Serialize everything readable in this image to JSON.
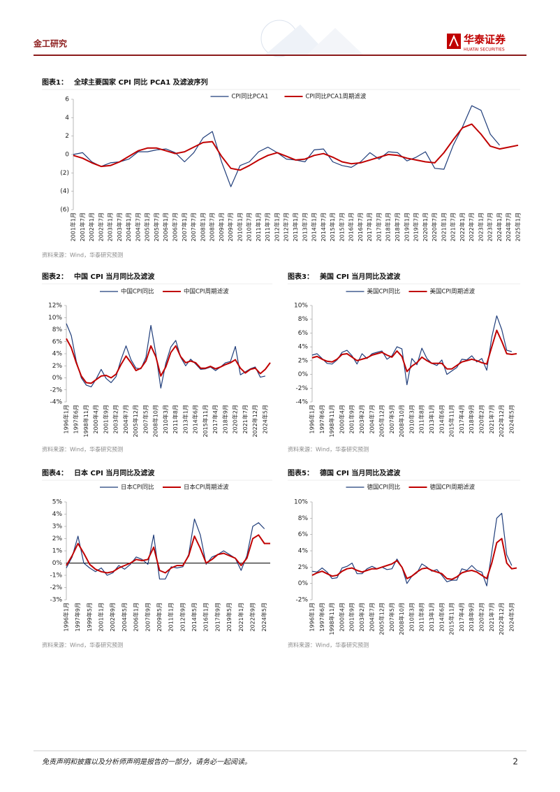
{
  "header": {
    "section": "金工研究",
    "logo_cn": "华泰证券",
    "logo_en": "HUATAI SECURITIES"
  },
  "footer": {
    "disclaimer": "免责声明和披露以及分析师声明是报告的一部分，请务必一起阅读。",
    "page": "2"
  },
  "chart_data": [
    {
      "type": "line",
      "label": "图表1：",
      "title": "全球主要国家 CPI 同比 PCA1 及滤波序列",
      "source": "资料来源：Wind，华泰研究预测",
      "legend": "top",
      "categories": [
        "2001年1月",
        "2001年7月",
        "2002年1月",
        "2002年7月",
        "2003年1月",
        "2003年7月",
        "2004年1月",
        "2004年7月",
        "2005年1月",
        "2005年7月",
        "2006年1月",
        "2006年7月",
        "2007年1月",
        "2007年7月",
        "2008年1月",
        "2008年7月",
        "2009年1月",
        "2009年7月",
        "2010年1月",
        "2010年7月",
        "2011年1月",
        "2011年7月",
        "2012年1月",
        "2012年7月",
        "2013年1月",
        "2013年7月",
        "2014年1月",
        "2014年7月",
        "2015年1月",
        "2015年7月",
        "2016年1月",
        "2016年7月",
        "2017年1月",
        "2017年7月",
        "2018年1月",
        "2018年7月",
        "2019年1月",
        "2019年7月",
        "2020年1月",
        "2020年7月",
        "2021年1月",
        "2021年7月",
        "2022年1月",
        "2022年7月",
        "2023年1月",
        "2023年7月",
        "2024年1月",
        "2024年7月",
        "2025年1月"
      ],
      "series": [
        {
          "name": "CPI同比PCA1",
          "color": "#1f3d7a",
          "width": 1.2,
          "values": [
            0,
            0.2,
            -0.8,
            -1.3,
            -0.9,
            -0.8,
            -0.5,
            0.3,
            0.3,
            0.5,
            0.6,
            0.2,
            -0.8,
            0.2,
            1.8,
            2.5,
            -0.8,
            -3.5,
            -1.2,
            -0.8,
            0.3,
            0.8,
            0.2,
            -0.5,
            -0.6,
            -0.8,
            0.5,
            0.6,
            -0.8,
            -1.2,
            -1.4,
            -0.8,
            0.2,
            -0.5,
            0.3,
            0.2,
            -0.7,
            -0.3,
            0.3,
            -1.5,
            -1.6,
            1.0,
            3.0,
            5.3,
            4.8,
            2.2,
            1.0,
            null,
            null
          ]
        },
        {
          "name": "CPI同比PCA1周期滤波",
          "color": "#c00000",
          "width": 2,
          "values": [
            -0.1,
            -0.4,
            -0.9,
            -1.3,
            -1.2,
            -0.8,
            -0.2,
            0.4,
            0.7,
            0.7,
            0.4,
            0.1,
            0.3,
            0.8,
            1.3,
            1.4,
            -0.2,
            -1.5,
            -1.7,
            -1.2,
            -0.6,
            -0.1,
            0.2,
            -0.2,
            -0.6,
            -0.5,
            -0.1,
            0.1,
            -0.3,
            -0.8,
            -1.0,
            -0.9,
            -0.6,
            -0.3,
            0.0,
            -0.1,
            -0.4,
            -0.6,
            -0.8,
            -0.9,
            0.2,
            1.6,
            2.9,
            3.3,
            2.2,
            0.9,
            0.6,
            0.8,
            1.0
          ]
        }
      ],
      "ylim": [
        -6,
        6
      ],
      "yticks": [
        {
          "value": -6,
          "label": "(6)"
        },
        {
          "value": -4,
          "label": "(4)"
        },
        {
          "value": -2,
          "label": "(2)"
        },
        0,
        2,
        4,
        6
      ]
    },
    {
      "type": "line",
      "label": "图表2：",
      "title": "中国 CPI 当月同比及滤波",
      "source": "资料来源：Wind，华泰研究预测",
      "legend": "top",
      "categories": [
        "1996年1月",
        null,
        "1997年6月",
        null,
        "1998年11月",
        null,
        "2000年4月",
        null,
        "2001年9月",
        null,
        "2003年2月",
        null,
        "2004年7月",
        null,
        "2005年12月",
        null,
        "2007年5月",
        null,
        "2008年10月",
        null,
        "2010年3月",
        null,
        "2011年8月",
        null,
        "2013年1月",
        null,
        "2014年6月",
        null,
        "2015年11月",
        null,
        "2017年4月",
        null,
        "2018年9月",
        null,
        "2020年2月",
        null,
        "2021年7月",
        null,
        "2022年12月",
        null,
        "2024年5月",
        null
      ],
      "series": [
        {
          "name": "中国CPI同比",
          "color": "#1f3d7a",
          "width": 1.2,
          "values": [
            9.0,
            7.0,
            2.8,
            0.0,
            -1.2,
            -1.5,
            -0.2,
            1.4,
            -0.1,
            -0.8,
            0.2,
            3.0,
            5.3,
            3.0,
            1.6,
            1.5,
            3.4,
            8.7,
            4.0,
            -1.7,
            2.4,
            5.1,
            6.2,
            3.4,
            2.0,
            3.1,
            2.3,
            1.4,
            1.5,
            1.8,
            1.2,
            1.8,
            2.5,
            2.7,
            5.2,
            0.5,
            1.0,
            1.5,
            1.8,
            0.1,
            0.3,
            null
          ]
        },
        {
          "name": "中国CPI周期滤波",
          "color": "#c00000",
          "width": 2,
          "values": [
            6.5,
            5.0,
            2.5,
            0.3,
            -0.8,
            -0.9,
            -0.3,
            0.3,
            0.4,
            0.0,
            0.6,
            2.2,
            3.6,
            2.5,
            1.2,
            1.6,
            2.8,
            5.3,
            3.5,
            0.3,
            1.8,
            4.2,
            5.3,
            3.5,
            2.5,
            2.8,
            2.5,
            1.6,
            1.6,
            1.9,
            1.5,
            1.8,
            2.2,
            2.5,
            3.0,
            1.6,
            0.8,
            1.4,
            1.6,
            0.7,
            1.4,
            2.5
          ]
        }
      ],
      "ylim": [
        -4,
        12
      ],
      "yticks": [
        {
          "value": -4,
          "label": "-4%"
        },
        {
          "value": -2,
          "label": "-2%"
        },
        {
          "value": 0,
          "label": "0%"
        },
        {
          "value": 2,
          "label": "2%"
        },
        {
          "value": 4,
          "label": "4%"
        },
        {
          "value": 6,
          "label": "6%"
        },
        {
          "value": 8,
          "label": "8%"
        },
        {
          "value": 10,
          "label": "10%"
        },
        {
          "value": 12,
          "label": "12%"
        }
      ]
    },
    {
      "type": "line",
      "label": "图表3：",
      "title": "美国 CPI 当月同比及滤波",
      "source": "资料来源：Wind，华泰研究预测",
      "legend": "top",
      "categories": [
        "1996年1月",
        null,
        "1997年6月",
        null,
        "1998年11月",
        null,
        "2000年4月",
        null,
        "2001年9月",
        null,
        "2003年2月",
        null,
        "2004年7月",
        null,
        "2005年12月",
        null,
        "2007年5月",
        null,
        "2008年10月",
        null,
        "2010年3月",
        null,
        "2011年8月",
        null,
        "2013年1月",
        null,
        "2014年6月",
        null,
        "2015年11月",
        null,
        "2017年4月",
        null,
        "2018年9月",
        null,
        "2020年2月",
        null,
        "2021年7月",
        null,
        "2022年12月",
        null,
        "2024年5月",
        null
      ],
      "series": [
        {
          "name": "美国CPI同比",
          "color": "#1f3d7a",
          "width": 1.2,
          "values": [
            2.8,
            3.0,
            2.3,
            1.6,
            1.5,
            2.1,
            3.2,
            3.5,
            2.7,
            1.5,
            3.0,
            2.3,
            3.0,
            3.2,
            3.4,
            2.2,
            2.7,
            4.0,
            3.7,
            -1.5,
            2.3,
            1.4,
            3.8,
            2.3,
            1.6,
            1.3,
            2.1,
            0.0,
            0.5,
            1.0,
            2.2,
            2.1,
            2.7,
            1.8,
            2.3,
            0.6,
            5.4,
            8.5,
            6.5,
            3.5,
            3.3,
            null
          ]
        },
        {
          "name": "美国CPI周期滤波",
          "color": "#c00000",
          "width": 2,
          "values": [
            2.4,
            2.6,
            2.2,
            1.9,
            1.8,
            2.2,
            2.9,
            3.0,
            2.5,
            2.0,
            2.2,
            2.4,
            2.8,
            3.0,
            3.2,
            2.8,
            2.5,
            3.4,
            2.6,
            0.4,
            1.2,
            1.7,
            2.5,
            2.0,
            1.6,
            1.6,
            1.6,
            0.8,
            0.8,
            1.3,
            1.8,
            2.0,
            2.2,
            2.0,
            1.7,
            1.5,
            4.0,
            6.4,
            4.8,
            3.0,
            2.9,
            3.0
          ]
        }
      ],
      "ylim": [
        -4,
        10
      ],
      "yticks": [
        {
          "value": -4,
          "label": "-4%"
        },
        {
          "value": -2,
          "label": "-2%"
        },
        {
          "value": 0,
          "label": "0%"
        },
        {
          "value": 2,
          "label": "2%"
        },
        {
          "value": 4,
          "label": "4%"
        },
        {
          "value": 6,
          "label": "6%"
        },
        {
          "value": 8,
          "label": "8%"
        },
        {
          "value": 10,
          "label": "10%"
        }
      ]
    },
    {
      "type": "line",
      "label": "图表4：",
      "title": "日本 CPI 当月同比及滤波",
      "source": "资料来源：Wind，华泰研究预测",
      "legend": "top",
      "zero_line": true,
      "categories": [
        "1996年1月",
        null,
        "1997年9月",
        null,
        "1999年5月",
        null,
        "2001年1月",
        null,
        "2002年9月",
        null,
        "2004年5月",
        null,
        "2006年1月",
        null,
        "2007年9月",
        null,
        "2009年5月",
        null,
        "2011年1月",
        null,
        "2012年9月",
        null,
        "2014年5月",
        null,
        "2016年1月",
        null,
        "2017年9月",
        null,
        "2019年5月",
        null,
        "2021年1月",
        null,
        "2022年9月",
        null,
        "2024年5月",
        null
      ],
      "series": [
        {
          "name": "日本CPI同比",
          "color": "#1f3d7a",
          "width": 1.2,
          "values": [
            -0.4,
            0.5,
            2.2,
            0.0,
            -0.4,
            -0.7,
            -0.4,
            -1.0,
            -0.8,
            -0.2,
            -0.5,
            -0.1,
            0.5,
            0.3,
            -0.1,
            2.3,
            -1.3,
            -1.3,
            -0.3,
            -0.4,
            -0.3,
            0.7,
            3.6,
            2.3,
            -0.1,
            0.5,
            0.7,
            1.0,
            0.7,
            0.4,
            -0.6,
            0.6,
            3.0,
            3.3,
            2.8,
            null
          ]
        },
        {
          "name": "日本CPI周期滤波",
          "color": "#c00000",
          "width": 2,
          "values": [
            -0.2,
            0.6,
            1.6,
            0.8,
            -0.1,
            -0.5,
            -0.7,
            -0.8,
            -0.7,
            -0.4,
            -0.2,
            0.0,
            0.3,
            0.2,
            0.3,
            1.3,
            -0.6,
            -0.8,
            -0.4,
            -0.2,
            -0.2,
            0.6,
            2.2,
            1.2,
            0.0,
            0.3,
            0.7,
            0.8,
            0.6,
            0.4,
            -0.2,
            0.4,
            2.0,
            2.3,
            1.6,
            1.6
          ]
        }
      ],
      "ylim": [
        -3,
        5
      ],
      "yticks": [
        {
          "value": -3,
          "label": "-3%"
        },
        {
          "value": -2,
          "label": "-2%"
        },
        {
          "value": -1,
          "label": "-1%"
        },
        {
          "value": 0,
          "label": "0%"
        },
        {
          "value": 1,
          "label": "1%"
        },
        {
          "value": 2,
          "label": "2%"
        },
        {
          "value": 3,
          "label": "3%"
        },
        {
          "value": 4,
          "label": "4%"
        },
        {
          "value": 5,
          "label": "5%"
        }
      ]
    },
    {
      "type": "line",
      "label": "图表5：",
      "title": "德国 CPI 当月同比及滤波",
      "source": "资料来源：Wind，华泰研究预测",
      "legend": "top",
      "categories": [
        "1996年1月",
        null,
        "1997年6月",
        null,
        "1998年11月",
        null,
        "2000年4月",
        null,
        "2001年9月",
        null,
        "2003年2月",
        null,
        "2004年7月",
        null,
        "2005年12月",
        null,
        "2007年5月",
        null,
        "2008年10月",
        null,
        "2010年3月",
        null,
        "2011年8月",
        null,
        "2013年1月",
        null,
        "2014年6月",
        null,
        "2015年11月",
        null,
        "2017年4月",
        null,
        "2018年9月",
        null,
        "2020年2月",
        null,
        "2021年7月",
        null,
        "2022年12月",
        null,
        "2024年5月",
        null
      ],
      "series": [
        {
          "name": "德国CPI同比",
          "color": "#1f3d7a",
          "width": 1.2,
          "values": [
            1.5,
            1.4,
            1.9,
            1.4,
            0.6,
            0.7,
            1.9,
            2.1,
            2.5,
            1.2,
            1.2,
            1.8,
            2.1,
            1.8,
            2.0,
            1.7,
            1.8,
            3.0,
            2.0,
            0.0,
            0.9,
            1.3,
            2.4,
            2.0,
            1.5,
            1.7,
            1.0,
            0.2,
            0.4,
            0.4,
            1.8,
            1.6,
            2.2,
            1.6,
            1.4,
            -0.3,
            3.8,
            8.0,
            8.6,
            3.5,
            2.2,
            null
          ]
        },
        {
          "name": "德国CPI周期滤波",
          "color": "#c00000",
          "width": 2,
          "values": [
            1.0,
            1.3,
            1.5,
            1.2,
            0.9,
            1.0,
            1.5,
            1.8,
            1.9,
            1.6,
            1.4,
            1.6,
            1.8,
            1.8,
            2.0,
            2.2,
            2.4,
            2.8,
            2.0,
            0.6,
            0.9,
            1.4,
            1.8,
            1.9,
            1.6,
            1.4,
            1.2,
            0.6,
            0.5,
            0.8,
            1.3,
            1.5,
            1.6,
            1.4,
            1.0,
            0.6,
            2.5,
            5.0,
            5.5,
            2.5,
            1.8,
            1.9
          ]
        }
      ],
      "ylim": [
        -2,
        10
      ],
      "yticks": [
        {
          "value": -2,
          "label": "-2%"
        },
        {
          "value": 0,
          "label": "0%"
        },
        {
          "value": 2,
          "label": "2%"
        },
        {
          "value": 4,
          "label": "4%"
        },
        {
          "value": 6,
          "label": "6%"
        },
        {
          "value": 8,
          "label": "8%"
        },
        {
          "value": 10,
          "label": "10%"
        }
      ]
    }
  ]
}
